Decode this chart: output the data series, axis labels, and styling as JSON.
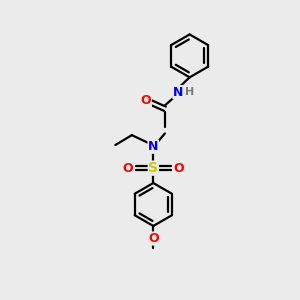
{
  "background_color": "#ebebeb",
  "bond_color": "#000000",
  "atom_colors": {
    "N": "#0000ff",
    "O": "#ff0000",
    "S": "#cccc00",
    "H": "#7a7a7a",
    "C": "#000000"
  },
  "figsize": [
    3.0,
    3.0
  ],
  "dpi": 100,
  "lw": 1.6,
  "fontsize": 9
}
